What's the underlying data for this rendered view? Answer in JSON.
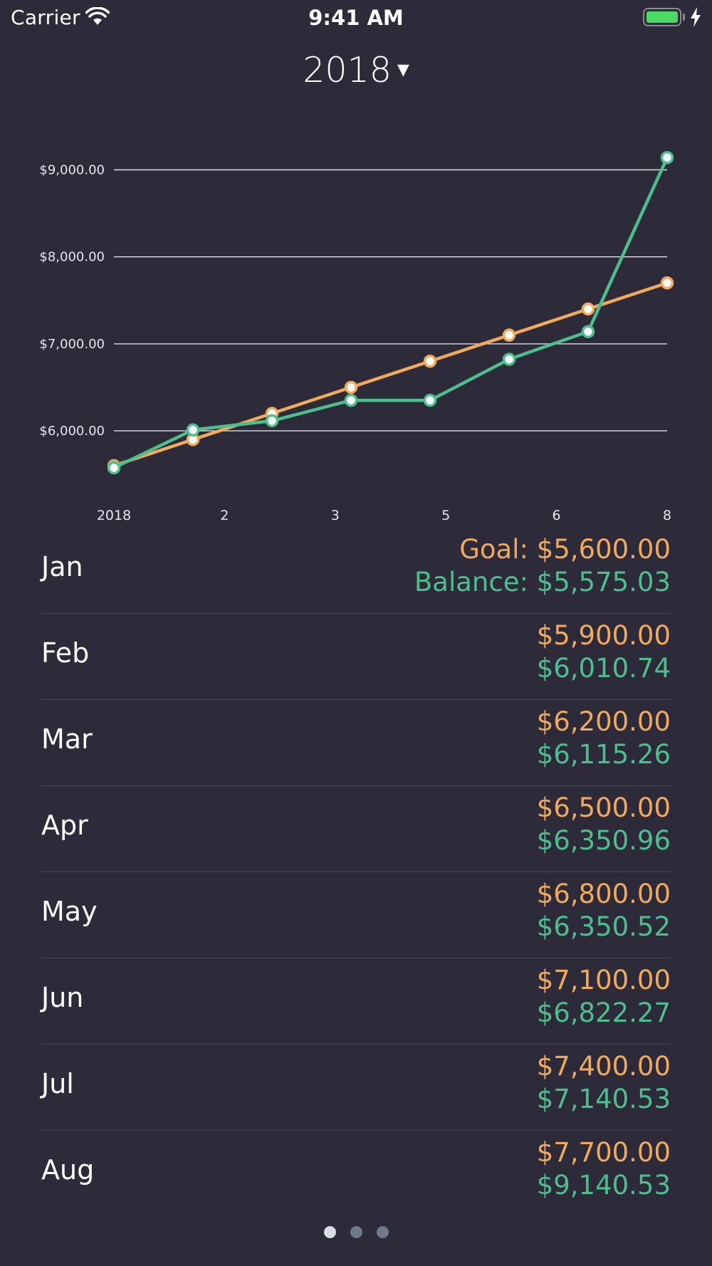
{
  "status_bar": {
    "carrier": "Carrier",
    "time": "9:41 AM",
    "wifi_icon": "wifi-icon",
    "battery_icon": "battery-icon",
    "charging_icon": "bolt-icon",
    "battery_level": 1.0
  },
  "header": {
    "year": "2018",
    "caret": "▼",
    "caret_icon": "chevron-down-icon"
  },
  "colors": {
    "background": "#2d2b3a",
    "goal": "#f1a95c",
    "balance": "#4cbf8c",
    "grid": "#e0e0e6",
    "axis_text": "#e6e6ec"
  },
  "chart_data": {
    "type": "line",
    "x": [
      1,
      2,
      3,
      4,
      5,
      6,
      7,
      8
    ],
    "x_tick_labels": [
      "2018",
      "2",
      "3",
      "5",
      "6",
      "8"
    ],
    "y_tick_labels": [
      "$9,000.00",
      "$8,000.00",
      "$7,000.00",
      "$6,000.00"
    ],
    "y_ticks": [
      9000,
      8000,
      7000,
      6000
    ],
    "ylim": [
      5400,
      9200
    ],
    "grid": true,
    "series": [
      {
        "name": "Goal",
        "color": "#f1a95c",
        "values": [
          5600,
          5900,
          6200,
          6500,
          6800,
          7100,
          7400,
          7700
        ]
      },
      {
        "name": "Balance",
        "color": "#4cbf8c",
        "values": [
          5575.03,
          6010.74,
          6115.26,
          6350.96,
          6350.52,
          6822.27,
          7140.53,
          9140.53
        ]
      }
    ]
  },
  "months": [
    {
      "name": "Jan",
      "goal": "Goal: $5,600.00",
      "balance": "Balance: $5,575.03"
    },
    {
      "name": "Feb",
      "goal": "$5,900.00",
      "balance": "$6,010.74"
    },
    {
      "name": "Mar",
      "goal": "$6,200.00",
      "balance": "$6,115.26"
    },
    {
      "name": "Apr",
      "goal": "$6,500.00",
      "balance": "$6,350.96"
    },
    {
      "name": "May",
      "goal": "$6,800.00",
      "balance": "$6,350.52"
    },
    {
      "name": "Jun",
      "goal": "$7,100.00",
      "balance": "$6,822.27"
    },
    {
      "name": "Jul",
      "goal": "$7,400.00",
      "balance": "$7,140.53"
    },
    {
      "name": "Aug",
      "goal": "$7,700.00",
      "balance": "$9,140.53"
    }
  ],
  "page_control": {
    "count": 3,
    "current": 1
  }
}
